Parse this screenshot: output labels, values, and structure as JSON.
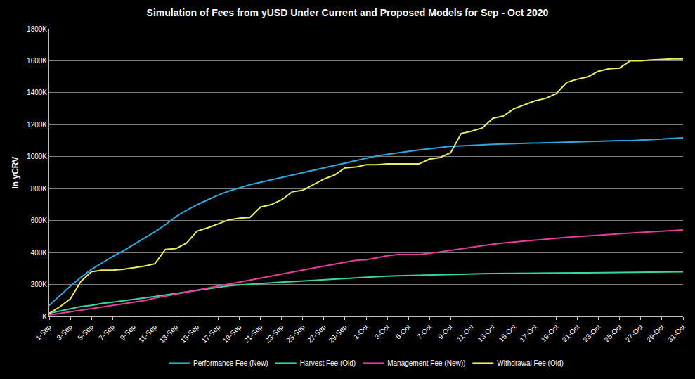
{
  "chart_data": {
    "type": "line",
    "title": "Simulation of Fees from yUSD Under Current and Proposed Models for Sep - Oct 2020",
    "y_label": "In yCRV",
    "categories": [
      "1-Sep",
      null,
      "3-Sep",
      null,
      "5-Sep",
      null,
      "7-Sep",
      null,
      "9-Sep",
      null,
      "11-Sep",
      null,
      "13-Sep",
      null,
      "15-Sep",
      null,
      "17-Sep",
      null,
      "19-Sep",
      null,
      "21-Sep",
      null,
      "23-Sep",
      null,
      "25-Sep",
      null,
      "27-Sep",
      null,
      "29-Sep",
      null,
      "1-Oct",
      null,
      "3-Oct",
      null,
      "5-Oct",
      null,
      "7-Oct",
      null,
      "9-Oct",
      null,
      "11-Oct",
      null,
      "13-Oct",
      null,
      "15-Oct",
      null,
      "17-Oct",
      null,
      "19-Oct",
      null,
      "21-Oct",
      null,
      "23-Oct",
      null,
      "25-Oct",
      null,
      "27-Oct",
      null,
      "29-Oct",
      null,
      "31-Oct"
    ],
    "series": [
      {
        "name": "Performance Fee (New)",
        "color": "#2aa8e0",
        "values": [
          70000,
          130000,
          190000,
          245000,
          295000,
          335000,
          375000,
          410000,
          450000,
          490000,
          530000,
          575000,
          625000,
          665000,
          700000,
          730000,
          760000,
          785000,
          805000,
          825000,
          840000,
          855000,
          870000,
          885000,
          900000,
          915000,
          930000,
          945000,
          960000,
          975000,
          990000,
          1005000,
          1015000,
          1025000,
          1035000,
          1042000,
          1050000,
          1058000,
          1065000,
          1068000,
          1070000,
          1073000,
          1077000,
          1080000,
          1082000,
          1085000,
          1087000,
          1089000,
          1091000,
          1093000,
          1095000,
          1096000,
          1097000,
          1098000,
          1100000,
          1101000,
          1103000,
          1106000,
          1110000,
          1115000,
          1118000
        ]
      },
      {
        "name": "Harvest Fee (Old)",
        "color": "#36d6a4",
        "values": [
          20000,
          35000,
          50000,
          62000,
          70000,
          82000,
          90000,
          98000,
          106000,
          115000,
          125000,
          135000,
          145000,
          155000,
          165000,
          175000,
          185000,
          192000,
          198000,
          203000,
          207000,
          211000,
          215000,
          219000,
          223000,
          228000,
          232000,
          236000,
          240000,
          243000,
          246000,
          250000,
          253000,
          255000,
          257000,
          259000,
          261000,
          263000,
          265000,
          266000,
          267000,
          268000,
          269000,
          270000,
          270000,
          271000,
          271000,
          272000,
          272000,
          273000,
          274000,
          274000,
          275000,
          275000,
          276000,
          276000,
          277000,
          277000,
          278000,
          279000,
          280000
        ]
      },
      {
        "name": "Management Fee (New))",
        "color": "#e63a9c",
        "values": [
          10000,
          20000,
          30000,
          40000,
          50000,
          60000,
          70000,
          80000,
          90000,
          100000,
          115000,
          128000,
          140000,
          152000,
          165000,
          178000,
          190000,
          203000,
          215000,
          228000,
          240000,
          253000,
          265000,
          278000,
          290000,
          303000,
          315000,
          328000,
          340000,
          352000,
          355000,
          368000,
          380000,
          388000,
          388000,
          388000,
          395000,
          405000,
          415000,
          425000,
          435000,
          445000,
          453000,
          460000,
          466000,
          473000,
          480000,
          485000,
          490000,
          496000,
          500000,
          505000,
          510000,
          514000,
          518000,
          522000,
          526000,
          530000,
          534000,
          538000,
          542000
        ]
      },
      {
        "name": "Withdrawal Fee (Old)",
        "color": "#ebeb5e",
        "values": [
          20000,
          60000,
          110000,
          220000,
          280000,
          290000,
          290000,
          295000,
          305000,
          315000,
          330000,
          420000,
          425000,
          460000,
          535000,
          555000,
          580000,
          605000,
          615000,
          620000,
          685000,
          700000,
          730000,
          780000,
          790000,
          825000,
          860000,
          885000,
          930000,
          935000,
          950000,
          950000,
          955000,
          955000,
          955000,
          955000,
          985000,
          995000,
          1025000,
          1145000,
          1160000,
          1180000,
          1240000,
          1255000,
          1300000,
          1325000,
          1350000,
          1365000,
          1395000,
          1465000,
          1485000,
          1500000,
          1535000,
          1550000,
          1555000,
          1600000,
          1600000,
          1605000,
          1610000,
          1612000,
          1612000
        ]
      }
    ],
    "ylim": [
      0,
      1800000
    ],
    "yticks": [
      {
        "value": 0,
        "label": "K"
      },
      {
        "value": 200000,
        "label": "200K"
      },
      {
        "value": 400000,
        "label": "400K"
      },
      {
        "value": 600000,
        "label": "600K"
      },
      {
        "value": 800000,
        "label": "800K"
      },
      {
        "value": 1000000,
        "label": "1000K"
      },
      {
        "value": 1200000,
        "label": "1200K"
      },
      {
        "value": 1400000,
        "label": "1400K"
      },
      {
        "value": 1600000,
        "label": "1600K"
      },
      {
        "value": 1800000,
        "label": "1800K"
      }
    ],
    "grid": true,
    "legend": "bottom",
    "line_style": "solid"
  }
}
